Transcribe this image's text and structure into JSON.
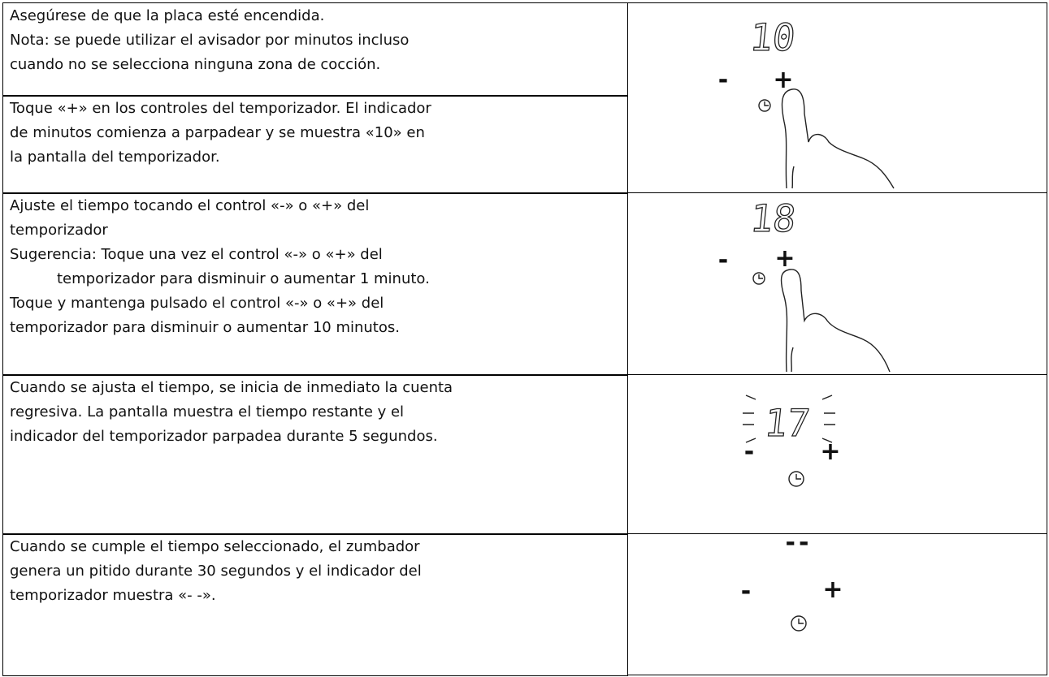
{
  "rows": [
    {
      "lines": [
        "Asegúrese de que la placa esté encendida.",
        "Nota: se puede utilizar el avisador por minutos incluso",
        "cuando no se selecciona ninguna zona de cocción."
      ]
    },
    {
      "lines": [
        "Toque «+» en los controles del temporizador. El indicador",
        "de minutos comienza a parpadear y se muestra «10» en",
        "la pantalla del temporizador."
      ]
    },
    {
      "lines": [
        "Ajuste el tiempo tocando el control «-» o «+» del",
        "temporizador",
        "Sugerencia: Toque una vez el control «-» o «+» del",
        "temporizador para disminuir o aumentar 1 minuto.",
        "Toque y mantenga pulsado el control «-» o «+» del",
        "temporizador para disminuir o aumentar 10 minutos."
      ]
    },
    {
      "lines": [
        "Cuando se ajusta el tiempo, se inicia de inmediato la cuenta",
        "regresiva. La pantalla muestra el tiempo restante y el",
        "indicador del temporizador parpadea durante 5 segundos."
      ]
    },
    {
      "lines": [
        "Cuando se cumple el tiempo seleccionado, el zumbador",
        "genera un pitido durante 30 segundos y el indicador del",
        "temporizador muestra «- -»."
      ]
    }
  ],
  "displays": [
    "10",
    "18",
    "17",
    "--"
  ],
  "controls": {
    "minus": "-",
    "plus": "+"
  }
}
